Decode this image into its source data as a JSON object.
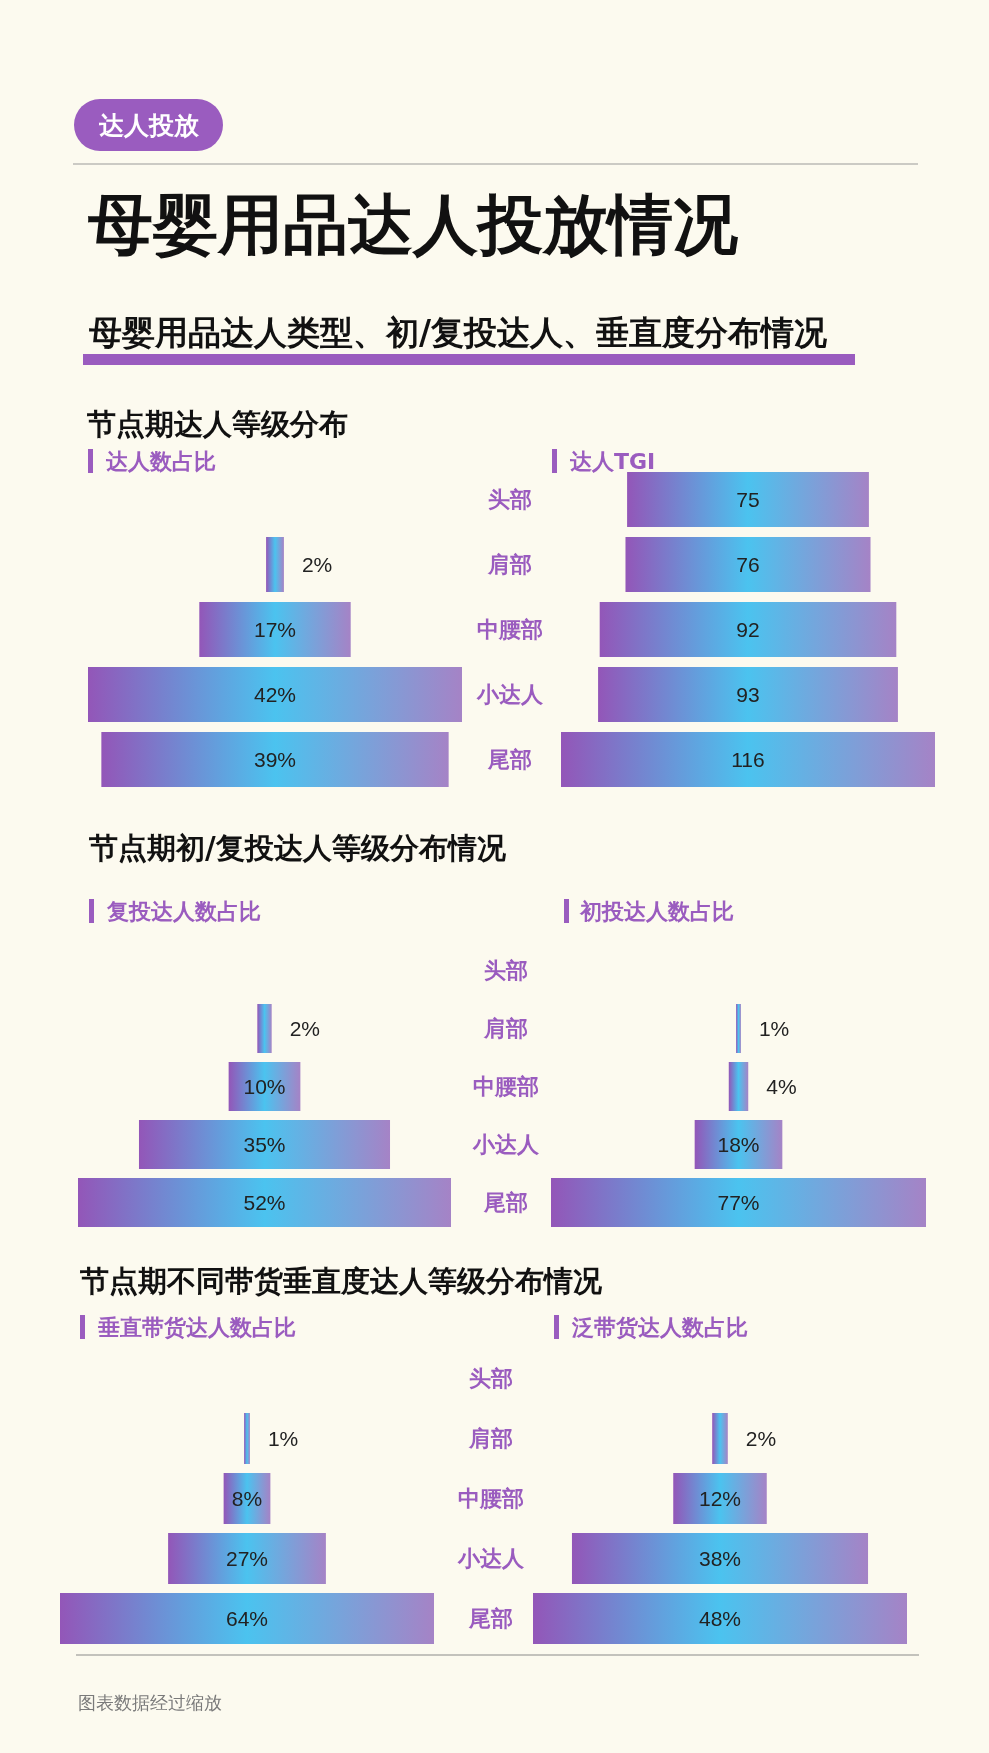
{
  "chart_data": [
    {
      "type": "other",
      "title": "母婴用品达人投放情况",
      "subtitle": "母婴用品达人类型、初/复投达人、垂直度分布情况",
      "annotations": [
        "达人投放",
        "图表数据经过缩放"
      ]
    },
    {
      "type": "other",
      "title": "节点期达人等级分布",
      "annotations": [
        "达人数占比",
        "达人TGI"
      ],
      "categories": [
        "头部",
        "肩部",
        "中腰部",
        "小达人",
        "尾部"
      ],
      "series": [
        {
          "color": "#4bc3ef",
          "values": [
            null,
            2,
            17,
            42,
            39
          ],
          "value_labels": [
            null,
            "2%",
            "17%",
            "42%",
            "39%"
          ]
        },
        {
          "color": "#4bc3ef",
          "values": [
            75,
            76,
            92,
            93,
            116
          ],
          "value_labels": [
            "75",
            "76",
            "92",
            "93",
            "116"
          ]
        }
      ]
    },
    {
      "type": "other",
      "title": "节点期初/复投达人等级分布情况",
      "annotations": [
        "复投达人数占比",
        "初投达人数占比"
      ],
      "categories": [
        "头部",
        "肩部",
        "中腰部",
        "小达人",
        "尾部"
      ],
      "series": [
        {
          "color": "#4bc3ef",
          "values": [
            null,
            2,
            10,
            35,
            52
          ],
          "value_labels": [
            null,
            "2%",
            "10%",
            "35%",
            "52%"
          ]
        },
        {
          "color": "#4bc3ef",
          "values": [
            null,
            1,
            4,
            18,
            77
          ],
          "value_labels": [
            null,
            "1%",
            "4%",
            "18%",
            "77%"
          ]
        }
      ]
    },
    {
      "type": "other",
      "title": "节点期不同带货垂直度达人等级分布情况",
      "annotations": [
        "垂直带货达人数占比",
        "泛带货达人数占比"
      ],
      "categories": [
        "头部",
        "肩部",
        "中腰部",
        "小达人",
        "尾部"
      ],
      "series": [
        {
          "color": "#4bc3ef",
          "values": [
            null,
            1,
            8,
            27,
            64
          ],
          "value_labels": [
            null,
            "1%",
            "8%",
            "27%",
            "64%"
          ]
        },
        {
          "color": "#4bc3ef",
          "values": [
            null,
            2,
            12,
            38,
            48
          ],
          "value_labels": [
            null,
            "2%",
            "12%",
            "38%",
            "48%"
          ]
        }
      ]
    }
  ]
}
